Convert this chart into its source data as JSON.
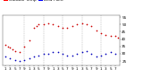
{
  "temp_color": "#cc0000",
  "dew_color": "#0000bb",
  "bg_color": "#ffffff",
  "grid_color": "#888888",
  "legend_temp_label": "Outdoor Temp",
  "legend_dew_label": "Dew Point",
  "legend_temp_bar_color": "#ff0000",
  "legend_dew_bar_color": "#0000ff",
  "x_ticks": [
    1,
    3,
    5,
    7,
    9,
    11,
    13,
    15,
    17,
    19,
    21,
    23,
    25,
    27,
    29,
    31,
    33,
    35,
    37,
    39,
    41,
    43,
    45,
    47
  ],
  "x_tick_labels": [
    "1",
    "3",
    "5",
    "7",
    "9",
    "1",
    "3",
    "5",
    "7",
    "9",
    "1",
    "3",
    "5",
    "7",
    "9",
    "1",
    "3",
    "5",
    "7",
    "9",
    "1",
    "3",
    "5",
    "7"
  ],
  "ylim": [
    22,
    56
  ],
  "xlim": [
    0,
    49
  ],
  "temp_x": [
    1,
    2,
    3,
    4,
    5,
    7,
    9,
    11,
    13,
    14,
    15,
    17,
    19,
    21,
    23,
    25,
    27,
    29,
    31,
    33,
    35,
    37,
    39,
    41,
    43,
    45,
    47,
    48
  ],
  "temp_y": [
    36,
    35,
    34,
    33,
    32,
    31,
    35,
    39,
    48,
    49,
    50,
    50,
    51,
    50,
    49,
    48,
    48,
    49,
    50,
    51,
    50,
    49,
    46,
    44,
    43,
    42,
    42,
    41
  ],
  "dew_x": [
    1,
    3,
    5,
    7,
    9,
    11,
    13,
    15,
    17,
    19,
    21,
    23,
    25,
    27,
    29,
    31,
    33,
    35,
    37,
    39,
    41,
    43,
    45,
    47
  ],
  "dew_y": [
    28,
    27,
    26,
    25,
    26,
    27,
    28,
    29,
    30,
    30,
    31,
    31,
    30,
    29,
    29,
    30,
    31,
    32,
    30,
    28,
    29,
    30,
    31,
    30
  ],
  "vline_x": [
    9,
    17,
    25,
    33,
    41
  ],
  "yticks": [
    25,
    30,
    35,
    40,
    45,
    50,
    55
  ],
  "marker_size": 1.5,
  "tick_fontsize": 3.0,
  "legend_fontsize": 3.2
}
